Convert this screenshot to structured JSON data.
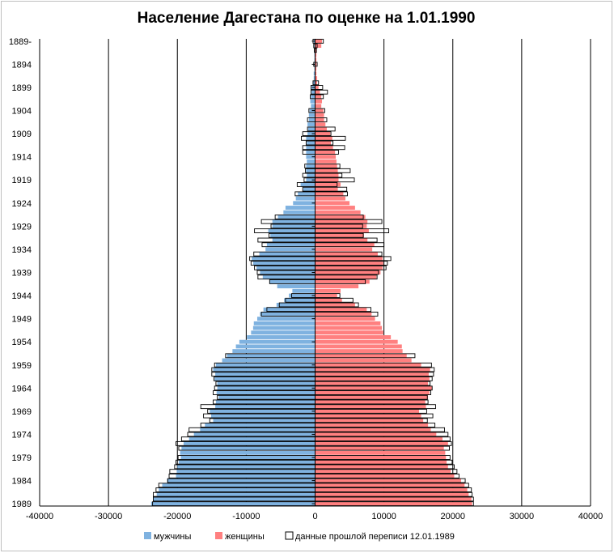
{
  "chart_data": {
    "type": "bar",
    "orientation": "horizontal-pyramid",
    "title": "Население Дагестана  по оценке на 1.01.1990",
    "xlim": [
      -40000,
      40000
    ],
    "x_ticks": [
      "-40000",
      "-30000",
      "-20000",
      "-10000",
      "0",
      "10000",
      "20000",
      "30000",
      "40000"
    ],
    "y_tick_labels": [
      "1889-",
      "1894",
      "1899",
      "1904",
      "1909",
      "1914",
      "1919",
      "1924",
      "1929",
      "1934",
      "1939",
      "1944",
      "1949",
      "1954",
      "1959",
      "1964",
      "1969",
      "1974",
      "1979",
      "1984",
      "1989"
    ],
    "grid": "vertical",
    "legend": {
      "position": "bottom"
    },
    "colors": {
      "male": "#7fb2e0",
      "female": "#ff8080",
      "census": "#000000"
    },
    "series": [
      {
        "name": "мужчины",
        "key": "male"
      },
      {
        "name": "женщины",
        "key": "female"
      },
      {
        "name": "данные прошлой переписи 12.01.1989",
        "key": "census"
      }
    ],
    "years": [
      1889,
      1890,
      1891,
      1892,
      1893,
      1894,
      1895,
      1896,
      1897,
      1898,
      1899,
      1900,
      1901,
      1902,
      1903,
      1904,
      1905,
      1906,
      1907,
      1908,
      1909,
      1910,
      1911,
      1912,
      1913,
      1914,
      1915,
      1916,
      1917,
      1918,
      1919,
      1920,
      1921,
      1922,
      1923,
      1924,
      1925,
      1926,
      1927,
      1928,
      1929,
      1930,
      1931,
      1932,
      1933,
      1934,
      1935,
      1936,
      1937,
      1938,
      1939,
      1940,
      1941,
      1942,
      1943,
      1944,
      1945,
      1946,
      1947,
      1948,
      1949,
      1950,
      1951,
      1952,
      1953,
      1954,
      1955,
      1956,
      1957,
      1958,
      1959,
      1960,
      1961,
      1962,
      1963,
      1964,
      1965,
      1966,
      1967,
      1968,
      1969,
      1970,
      1971,
      1972,
      1973,
      1974,
      1975,
      1976,
      1977,
      1978,
      1979,
      1980,
      1981,
      1982,
      1983,
      1984,
      1985,
      1986,
      1987,
      1988,
      1989
    ],
    "male": [
      -200,
      -100,
      -100,
      -100,
      -100,
      -100,
      -100,
      -200,
      -200,
      -300,
      -500,
      -500,
      -600,
      -700,
      -600,
      -800,
      -900,
      -900,
      -1100,
      -1000,
      -1100,
      -1300,
      -1200,
      -1300,
      -1300,
      -1300,
      -1200,
      -1300,
      -1300,
      -1200,
      -1300,
      -2100,
      -1700,
      -2500,
      -2800,
      -3200,
      -4300,
      -4600,
      -5400,
      -6200,
      -6200,
      -6800,
      -6500,
      -6200,
      -7000,
      -7200,
      -8100,
      -9200,
      -9000,
      -8500,
      -8000,
      -7600,
      -6600,
      -5500,
      -3300,
      -3800,
      -4500,
      -5600,
      -7500,
      -8000,
      -8400,
      -8900,
      -9000,
      -9300,
      -9900,
      -11000,
      -11500,
      -12000,
      -12800,
      -13500,
      -14400,
      -14800,
      -14500,
      -14600,
      -14200,
      -14200,
      -14300,
      -14000,
      -14400,
      -14500,
      -15300,
      -15100,
      -14800,
      -16000,
      -16700,
      -17600,
      -18300,
      -19100,
      -19400,
      -19600,
      -19500,
      -19800,
      -20000,
      -20100,
      -20200,
      -21500,
      -22200,
      -22700,
      -23000,
      -23500,
      -23800
    ],
    "female": [
      1000,
      900,
      200,
      200,
      200,
      200,
      200,
      200,
      300,
      300,
      500,
      700,
      900,
      1000,
      900,
      1200,
      1300,
      1300,
      1500,
      1700,
      2200,
      2500,
      2300,
      2600,
      2900,
      3000,
      3100,
      3200,
      3300,
      3400,
      3400,
      3700,
      3300,
      4100,
      4400,
      5000,
      5800,
      6600,
      7300,
      7600,
      7500,
      7800,
      7100,
      7600,
      8600,
      8300,
      9100,
      9800,
      9900,
      9800,
      9500,
      8900,
      7900,
      6300,
      3700,
      3200,
      3900,
      5800,
      7500,
      8200,
      8700,
      9500,
      9700,
      9900,
      11000,
      12000,
      12600,
      12700,
      13300,
      14000,
      15400,
      16700,
      16500,
      16600,
      16400,
      17000,
      16600,
      16400,
      16000,
      16100,
      15100,
      15400,
      15700,
      16400,
      16800,
      17600,
      18500,
      19300,
      18700,
      18900,
      19000,
      19100,
      19300,
      19700,
      20200,
      21200,
      21700,
      22100,
      22300,
      22700,
      22800
    ],
    "census": [
      [
        1889,
        -300,
        1200
      ],
      [
        1890,
        -200,
        300
      ],
      [
        1891,
        -100,
        200
      ],
      [
        1894,
        -200,
        300
      ],
      [
        1898,
        -300,
        500
      ],
      [
        1899,
        -600,
        1100
      ],
      [
        1900,
        -600,
        1800
      ],
      [
        1901,
        -700,
        1200
      ],
      [
        1904,
        -900,
        1400
      ],
      [
        1906,
        -1100,
        1700
      ],
      [
        1908,
        -1100,
        2900
      ],
      [
        1909,
        -1800,
        2300
      ],
      [
        1910,
        -2000,
        4400
      ],
      [
        1911,
        -1300,
        2600
      ],
      [
        1912,
        -1800,
        4300
      ],
      [
        1913,
        -1800,
        3400
      ],
      [
        1916,
        -1500,
        3600
      ],
      [
        1917,
        -1400,
        5100
      ],
      [
        1918,
        -1800,
        3900
      ],
      [
        1919,
        -1600,
        5700
      ],
      [
        1920,
        -2600,
        3200
      ],
      [
        1921,
        -1800,
        4600
      ],
      [
        1922,
        -2900,
        4700
      ],
      [
        1927,
        -5800,
        7000
      ],
      [
        1928,
        -7800,
        9700
      ],
      [
        1929,
        -6400,
        6900
      ],
      [
        1930,
        -8800,
        10700
      ],
      [
        1931,
        -6700,
        7000
      ],
      [
        1932,
        -8300,
        9000
      ],
      [
        1933,
        -7700,
        10000
      ],
      [
        1935,
        -8900,
        9700
      ],
      [
        1936,
        -9500,
        11000
      ],
      [
        1937,
        -9300,
        10500
      ],
      [
        1938,
        -8800,
        10300
      ],
      [
        1939,
        -8400,
        9200
      ],
      [
        1940,
        -8300,
        9000
      ],
      [
        1941,
        -6600,
        7300
      ],
      [
        1944,
        -3400,
        3600
      ],
      [
        1945,
        -4300,
        5500
      ],
      [
        1946,
        -5200,
        6300
      ],
      [
        1947,
        -7000,
        8100
      ],
      [
        1948,
        -7800,
        9100
      ],
      [
        1957,
        -13000,
        14500
      ],
      [
        1959,
        -14600,
        16900
      ],
      [
        1960,
        -15000,
        17300
      ],
      [
        1961,
        -15000,
        17200
      ],
      [
        1962,
        -14700,
        17000
      ],
      [
        1963,
        -14400,
        16700
      ],
      [
        1964,
        -14600,
        17000
      ],
      [
        1965,
        -14800,
        16800
      ],
      [
        1966,
        -14200,
        16300
      ],
      [
        1967,
        -14800,
        16400
      ],
      [
        1968,
        -16600,
        17500
      ],
      [
        1969,
        -15600,
        16200
      ],
      [
        1970,
        -16200,
        17100
      ],
      [
        1971,
        -15300,
        16300
      ],
      [
        1972,
        -16600,
        17400
      ],
      [
        1973,
        -18300,
        18800
      ],
      [
        1974,
        -18500,
        19300
      ],
      [
        1975,
        -19400,
        19600
      ],
      [
        1976,
        -20200,
        19800
      ],
      [
        1977,
        -19800,
        19500
      ],
      [
        1979,
        -19900,
        19600
      ],
      [
        1980,
        -20200,
        19900
      ],
      [
        1981,
        -20400,
        20200
      ],
      [
        1982,
        -21100,
        20600
      ],
      [
        1983,
        -21200,
        20900
      ],
      [
        1984,
        -21400,
        21800
      ],
      [
        1985,
        -22700,
        22300
      ],
      [
        1986,
        -23100,
        22700
      ],
      [
        1987,
        -23500,
        22800
      ],
      [
        1988,
        -23500,
        23000
      ],
      [
        1989,
        -23600,
        23000
      ]
    ]
  }
}
